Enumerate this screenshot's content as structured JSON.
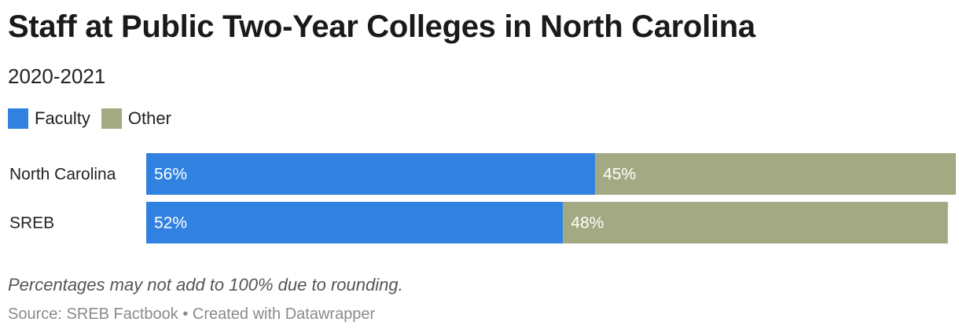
{
  "header": {
    "title": "Staff at Public Two-Year Colleges in North Carolina",
    "subtitle": "2020-2021"
  },
  "footer": {
    "note": "Percentages may not add to 100% due to rounding.",
    "source": "Source: SREB Factbook • Created with Datawrapper"
  },
  "chart_data": {
    "type": "bar",
    "orientation": "horizontal",
    "stacked": true,
    "title": "Staff at Public Two-Year Colleges in North Carolina",
    "subtitle": "2020-2021",
    "categories": [
      "North Carolina",
      "SREB"
    ],
    "series": [
      {
        "name": "Faculty",
        "color": "#3182e0",
        "values": [
          56,
          52
        ],
        "labels": [
          "56%",
          "52%"
        ]
      },
      {
        "name": "Other",
        "color": "#a3a982",
        "values": [
          45,
          48
        ],
        "labels": [
          "45%",
          "48%"
        ]
      }
    ],
    "xlim": [
      0,
      101
    ],
    "grid": false,
    "legend_position": "top-left"
  }
}
